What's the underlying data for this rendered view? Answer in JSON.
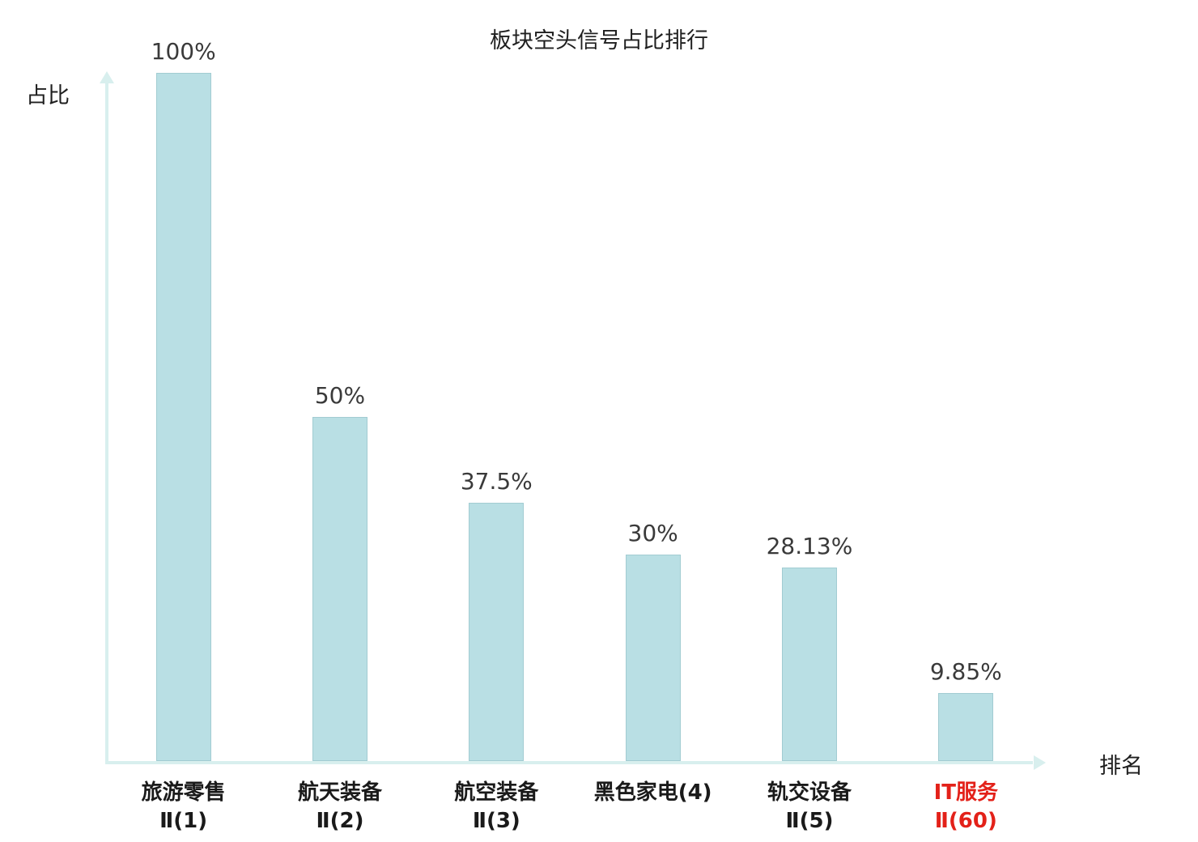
{
  "chart_data": {
    "type": "bar",
    "title": "板块空头信号占比排行",
    "ylabel": "占比",
    "xlabel": "排名",
    "categories": [
      "旅游零售",
      "航天装备",
      "航空装备",
      "黑色家电(4)",
      "轨交设备",
      "IT服务"
    ],
    "sub_labels": [
      "Ⅱ(1)",
      "Ⅱ(2)",
      "Ⅱ(3)",
      "",
      "Ⅱ(5)",
      "Ⅱ(60)"
    ],
    "values": [
      100,
      50,
      37.5,
      30,
      28.13,
      9.85
    ],
    "value_labels": [
      "100%",
      "50%",
      "37.5%",
      "30%",
      "28.13%",
      "9.85%"
    ],
    "ylim": [
      0,
      100
    ],
    "grid": false,
    "legend": "none",
    "highlight_index": 5,
    "bar_color": "#b9dfe4",
    "axis_color": "#d8efee",
    "highlight_color": "#e32119",
    "text_color": "#1f1f1f"
  }
}
